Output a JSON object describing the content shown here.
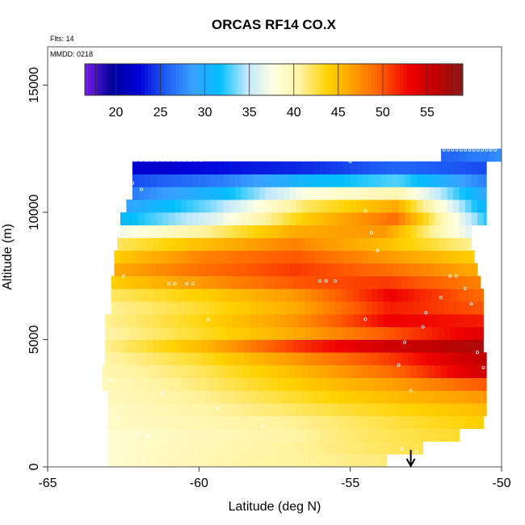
{
  "chart_data": {
    "type": "heatmap",
    "title": "ORCAS RF14 CO.X",
    "xlabel": "Latitude (deg N)",
    "ylabel": "Altitude (m)",
    "xlim": [
      -65,
      -50
    ],
    "ylim": [
      0,
      16500
    ],
    "x_ticks": [
      -65,
      -60,
      -55,
      -50
    ],
    "x_tick_labels": [
      "-65",
      "-60",
      "-55",
      "-50"
    ],
    "y_ticks": [
      0,
      5000,
      10000,
      15000
    ],
    "y_tick_labels": [
      "0",
      "5000",
      "10000",
      "15000"
    ],
    "annotations": {
      "flights": "Flts: 14",
      "date": "MMDD: 0218"
    },
    "colorbar": {
      "min": 16.5,
      "max": 59,
      "ticks": [
        20,
        25,
        30,
        35,
        40,
        45,
        50,
        55
      ],
      "tick_labels": [
        "20",
        "25",
        "30",
        "35",
        "40",
        "45",
        "50",
        "55"
      ],
      "colors": [
        "#7b1fe6",
        "#00009a",
        "#0000d8",
        "#1e5ef5",
        "#3aa0ff",
        "#00bfff",
        "#bfe8ff",
        "#ffffe0",
        "#fff3a0",
        "#ffd200",
        "#ff9a00",
        "#ff5a00",
        "#f00000",
        "#c00000",
        "#8b1a1a"
      ]
    },
    "arrow": {
      "x": -53,
      "label": ""
    },
    "layers": [
      {
        "alt_top": 500,
        "x0": -63.0,
        "x1": -53.8,
        "values": [
          38.5,
          39.5,
          40.5,
          41,
          41.5
        ]
      },
      {
        "alt_top": 1000,
        "x0": -63.0,
        "x1": -52.6,
        "values": [
          38.5,
          39.5,
          40.5,
          41.5,
          42.5
        ]
      },
      {
        "alt_top": 1500,
        "x0": -63.0,
        "x1": -51.4,
        "values": [
          38.5,
          39.5,
          40.5,
          42,
          43
        ]
      },
      {
        "alt_top": 2000,
        "x0": -63.0,
        "x1": -50.6,
        "values": [
          39,
          40,
          41,
          42.5,
          44
        ]
      },
      {
        "alt_top": 2500,
        "x0": -63.0,
        "x1": -50.5,
        "values": [
          39,
          40.5,
          42,
          43.5,
          45
        ]
      },
      {
        "alt_top": 3000,
        "x0": -63.0,
        "x1": -50.5,
        "values": [
          39.5,
          41,
          43,
          45,
          47
        ]
      },
      {
        "alt_top": 3500,
        "x0": -63.2,
        "x1": -50.5,
        "values": [
          39.5,
          41.5,
          44,
          46.5,
          50
        ]
      },
      {
        "alt_top": 4000,
        "x0": -63.2,
        "x1": -50.5,
        "values": [
          40,
          42,
          45,
          49,
          55
        ]
      },
      {
        "alt_top": 4500,
        "x0": -63.1,
        "x1": -50.5,
        "values": [
          40.5,
          43,
          47,
          51,
          56
        ]
      },
      {
        "alt_top": 5000,
        "x0": -63.1,
        "x1": -50.6,
        "values": [
          41,
          45,
          51,
          55,
          57
        ]
      },
      {
        "alt_top": 5500,
        "x0": -63.1,
        "x1": -50.6,
        "values": [
          40.5,
          43,
          46,
          50,
          54
        ]
      },
      {
        "alt_top": 6000,
        "x0": -63.1,
        "x1": -50.6,
        "values": [
          41,
          43.5,
          47,
          53,
          52
        ]
      },
      {
        "alt_top": 6500,
        "x0": -62.9,
        "x1": -50.6,
        "values": [
          41,
          43,
          46,
          52,
          50
        ]
      },
      {
        "alt_top": 7000,
        "x0": -62.9,
        "x1": -50.6,
        "values": [
          42,
          44,
          47,
          53,
          49
        ]
      },
      {
        "alt_top": 7500,
        "x0": -62.9,
        "x1": -50.7,
        "values": [
          44,
          47,
          50,
          51,
          48
        ]
      },
      {
        "alt_top": 8000,
        "x0": -62.8,
        "x1": -50.8,
        "values": [
          46,
          49,
          51,
          49,
          46
        ]
      },
      {
        "alt_top": 8500,
        "x0": -62.8,
        "x1": -50.9,
        "values": [
          44,
          48,
          50,
          47,
          44
        ]
      },
      {
        "alt_top": 9000,
        "x0": -62.7,
        "x1": -51.0,
        "values": [
          42,
          45,
          48,
          45,
          41
        ]
      },
      {
        "alt_top": 9500,
        "x0": -62.6,
        "x1": -51.0,
        "values": [
          37,
          41,
          46,
          47,
          36
        ]
      },
      {
        "alt_top": 10000,
        "x0": -62.6,
        "x1": -50.5,
        "values": [
          31,
          36,
          44,
          49,
          32
        ]
      },
      {
        "alt_top": 10500,
        "x0": -62.4,
        "x1": -50.5,
        "values": [
          29,
          34,
          42,
          46,
          30
        ]
      },
      {
        "alt_top": 11000,
        "x0": -62.2,
        "x1": -50.5,
        "values": [
          27,
          31,
          38,
          40,
          29
        ]
      },
      {
        "alt_top": 11500,
        "x0": -62.2,
        "x1": -50.5,
        "values": [
          25,
          27,
          31,
          33,
          27
        ]
      },
      {
        "alt_top": 12000,
        "x0": -62.2,
        "x1": -50.5,
        "values": [
          22,
          23,
          24,
          26,
          25
        ]
      },
      {
        "alt_top": 12500,
        "x0": -52.0,
        "x1": -50.0,
        "values": [
          26,
          26,
          27,
          27,
          28
        ]
      }
    ]
  }
}
